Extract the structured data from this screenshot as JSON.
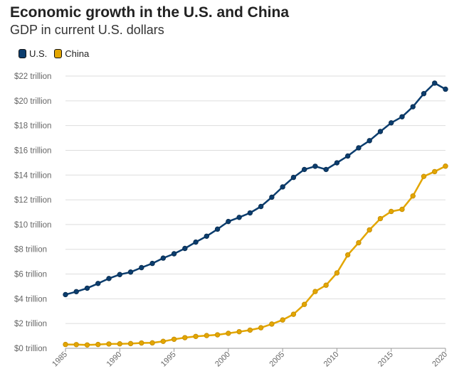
{
  "title": "Economic growth in the U.S. and China",
  "subtitle": "GDP in current U.S. dollars",
  "colors": {
    "us": "#0b3d6e",
    "china": "#e3a600",
    "grid": "#dddddd"
  },
  "chart_data": {
    "type": "line",
    "title": "Economic growth in the U.S. and China",
    "subtitle": "GDP in current U.S. dollars",
    "xlabel": "",
    "ylabel": "",
    "unit": "trillion U.S. dollars",
    "xlim": [
      1985,
      2020
    ],
    "ylim": [
      0,
      22
    ],
    "grid": true,
    "legend_position": "top-left",
    "y_ticks": [
      0,
      2,
      4,
      6,
      8,
      10,
      12,
      14,
      16,
      18,
      20,
      22
    ],
    "y_tick_labels": [
      "$0 trillion",
      "$2 trillion",
      "$4 trillion",
      "$6 trillion",
      "$8 trillion",
      "$10 trillion",
      "$12 trillion",
      "$14 trillion",
      "$16 trillion",
      "$18 trillion",
      "$20 trillion",
      "$22 trillion"
    ],
    "x_ticks": [
      1985,
      1990,
      1995,
      2000,
      2005,
      2010,
      2015,
      2020
    ],
    "x_tick_labels": [
      "1985",
      "1990",
      "1995",
      "2000",
      "2005",
      "2010",
      "2015",
      "2020"
    ],
    "x": [
      1985,
      1986,
      1987,
      1988,
      1989,
      1990,
      1991,
      1992,
      1993,
      1994,
      1995,
      1996,
      1997,
      1998,
      1999,
      2000,
      2001,
      2002,
      2003,
      2004,
      2005,
      2006,
      2007,
      2008,
      2009,
      2010,
      2011,
      2012,
      2013,
      2014,
      2015,
      2016,
      2017,
      2018,
      2019,
      2020
    ],
    "series": [
      {
        "name": "U.S.",
        "color": "#0b3d6e",
        "values": [
          4.34,
          4.58,
          4.86,
          5.24,
          5.64,
          5.96,
          6.16,
          6.52,
          6.86,
          7.29,
          7.64,
          8.07,
          8.58,
          9.06,
          9.63,
          10.25,
          10.58,
          10.94,
          11.46,
          12.21,
          13.04,
          13.81,
          14.45,
          14.71,
          14.45,
          14.99,
          15.54,
          16.2,
          16.78,
          17.52,
          18.22,
          18.71,
          19.52,
          20.58,
          21.43,
          20.94
        ]
      },
      {
        "name": "China",
        "color": "#e3a600",
        "values": [
          0.31,
          0.3,
          0.27,
          0.31,
          0.35,
          0.36,
          0.38,
          0.43,
          0.44,
          0.56,
          0.73,
          0.86,
          0.96,
          1.03,
          1.09,
          1.21,
          1.34,
          1.47,
          1.66,
          1.96,
          2.29,
          2.75,
          3.55,
          4.59,
          5.1,
          6.09,
          7.55,
          8.53,
          9.57,
          10.48,
          11.06,
          11.23,
          12.31,
          13.89,
          14.28,
          14.72
        ]
      }
    ]
  }
}
